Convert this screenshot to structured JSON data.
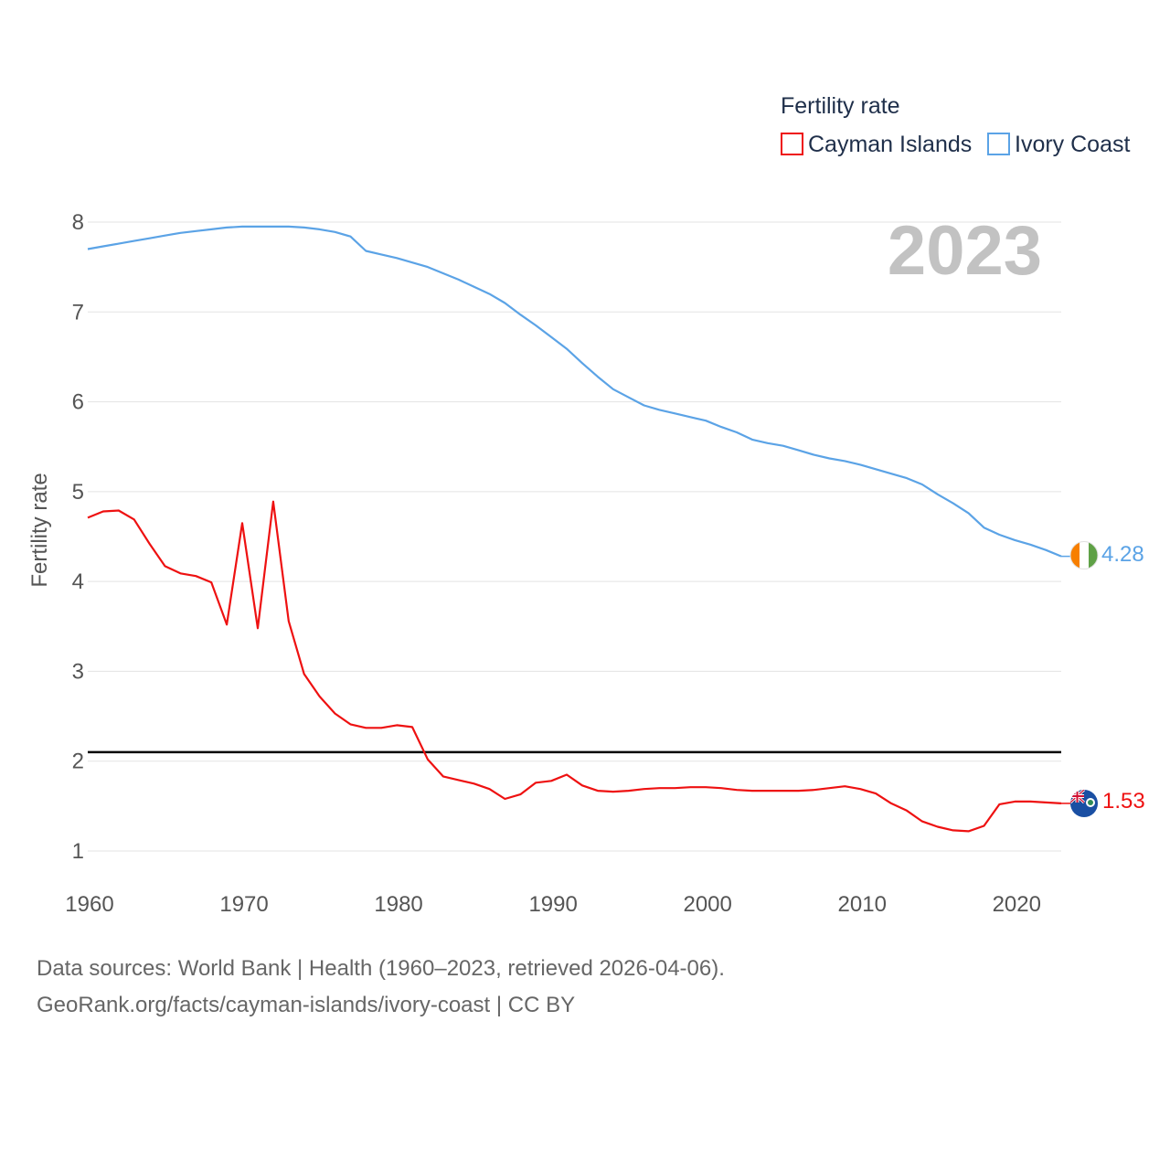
{
  "chart_data": {
    "type": "line",
    "year_label": "2023",
    "ylabel": "Fertility rate",
    "xlabel": "",
    "xlim": [
      1960,
      2023
    ],
    "ylim": [
      1,
      8
    ],
    "x_ticks": [
      1960,
      1970,
      1980,
      1990,
      2000,
      2010,
      2020
    ],
    "y_ticks": [
      1,
      2,
      3,
      4,
      5,
      6,
      7,
      8
    ],
    "legend": {
      "title": "Fertility rate",
      "position": "top-right"
    },
    "reference_line": {
      "value": 2.1,
      "color": "#000000"
    },
    "x": [
      1960,
      1961,
      1962,
      1963,
      1964,
      1965,
      1966,
      1967,
      1968,
      1969,
      1970,
      1971,
      1972,
      1973,
      1974,
      1975,
      1976,
      1977,
      1978,
      1979,
      1980,
      1981,
      1982,
      1983,
      1984,
      1985,
      1986,
      1987,
      1988,
      1989,
      1990,
      1991,
      1992,
      1993,
      1994,
      1995,
      1996,
      1997,
      1998,
      1999,
      2000,
      2001,
      2002,
      2003,
      2004,
      2005,
      2006,
      2007,
      2008,
      2009,
      2010,
      2011,
      2012,
      2013,
      2014,
      2015,
      2016,
      2017,
      2018,
      2019,
      2020,
      2021,
      2022,
      2023
    ],
    "series": [
      {
        "name": "Ivory Coast",
        "color": "#5ba3e6",
        "end_value_label": "4.28",
        "values": [
          7.7,
          7.73,
          7.76,
          7.79,
          7.82,
          7.85,
          7.88,
          7.9,
          7.92,
          7.94,
          7.95,
          7.95,
          7.95,
          7.95,
          7.94,
          7.92,
          7.89,
          7.84,
          7.68,
          7.64,
          7.6,
          7.55,
          7.5,
          7.43,
          7.36,
          7.28,
          7.2,
          7.1,
          6.97,
          6.85,
          6.72,
          6.59,
          6.43,
          6.28,
          6.14,
          6.05,
          5.96,
          5.91,
          5.87,
          5.83,
          5.79,
          5.72,
          5.66,
          5.58,
          5.54,
          5.51,
          5.46,
          5.41,
          5.37,
          5.34,
          5.3,
          5.25,
          5.2,
          5.15,
          5.08,
          4.97,
          4.87,
          4.76,
          4.6,
          4.52,
          4.46,
          4.41,
          4.35,
          4.28
        ]
      },
      {
        "name": "Cayman Islands",
        "color": "#ee1111",
        "end_value_label": "1.53",
        "values": [
          4.71,
          4.78,
          4.79,
          4.69,
          4.42,
          4.17,
          4.09,
          4.06,
          3.99,
          3.52,
          4.65,
          3.48,
          4.89,
          3.56,
          2.97,
          2.72,
          2.53,
          2.41,
          2.37,
          2.37,
          2.4,
          2.38,
          2.02,
          1.83,
          1.79,
          1.75,
          1.69,
          1.58,
          1.63,
          1.76,
          1.78,
          1.85,
          1.73,
          1.67,
          1.66,
          1.67,
          1.69,
          1.7,
          1.7,
          1.71,
          1.71,
          1.7,
          1.68,
          1.67,
          1.67,
          1.67,
          1.67,
          1.68,
          1.7,
          1.72,
          1.69,
          1.64,
          1.53,
          1.45,
          1.33,
          1.27,
          1.23,
          1.22,
          1.28,
          1.52,
          1.55,
          1.55,
          1.54,
          1.53
        ]
      }
    ]
  },
  "footer": {
    "line1": "Data sources: World Bank | Health (1960–2023, retrieved 2026-04-06).",
    "line2": "GeoRank.org/facts/cayman-islands/ivory-coast | CC BY"
  },
  "icons": {
    "ivory_coast_marker": "ivory-coast-flag-icon",
    "cayman_marker": "cayman-islands-flag-icon"
  }
}
